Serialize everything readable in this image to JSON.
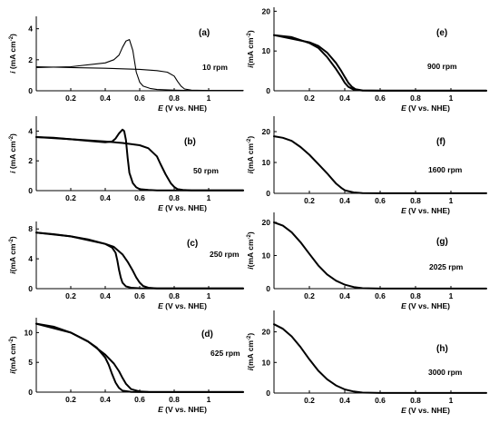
{
  "chart_data": [
    {
      "type": "line",
      "panel_label": "(a)",
      "rpm_label": "10 rpm",
      "xlabel_italic": "E",
      "xlabel_rest": " (V vs. NHE)",
      "ylabel_italic": "i",
      "ylabel_rest": " (mA cm",
      "ylabel_sup": "-2",
      "ylabel_end": ")",
      "xlim": [
        0,
        1.2
      ],
      "ylim": [
        0,
        4.8
      ],
      "xticks": [
        0.2,
        0.4,
        0.6,
        0.8,
        1
      ],
      "xtick_labels": [
        "0.2",
        "0.4",
        "0.6",
        "0.8",
        "1"
      ],
      "yticks": [
        0,
        2,
        4
      ],
      "ytick_labels": [
        "0",
        "2",
        "4"
      ],
      "series": [
        {
          "style": "thin",
          "x": [
            0,
            0.2,
            0.4,
            0.45,
            0.48,
            0.5,
            0.52,
            0.54,
            0.56,
            0.58,
            0.6,
            0.62,
            0.66,
            0.7,
            0.8,
            0.9,
            1.2
          ],
          "y": [
            1.5,
            1.55,
            1.8,
            2.0,
            2.3,
            2.8,
            3.2,
            3.3,
            2.6,
            1.2,
            0.55,
            0.3,
            0.15,
            0.08,
            0.04,
            0.02,
            0.02
          ]
        },
        {
          "style": "thin",
          "x": [
            0,
            0.2,
            0.4,
            0.6,
            0.7,
            0.76,
            0.8,
            0.82,
            0.84,
            0.86,
            0.9,
            1.0,
            1.2
          ],
          "y": [
            1.55,
            1.5,
            1.45,
            1.38,
            1.3,
            1.2,
            0.95,
            0.6,
            0.3,
            0.12,
            0.04,
            0.02,
            0.02
          ]
        }
      ]
    },
    {
      "type": "line",
      "panel_label": "(b)",
      "rpm_label": "50 rpm",
      "xlabel_italic": "E",
      "xlabel_rest": " (V vs. NHE)",
      "ylabel_italic": "i",
      "ylabel_rest": " (mA cm",
      "ylabel_sup": "-2",
      "ylabel_end": ")",
      "xlim": [
        0,
        1.2
      ],
      "ylim": [
        0,
        5
      ],
      "xticks": [
        0.2,
        0.4,
        0.6,
        0.8,
        1
      ],
      "xtick_labels": [
        "0.2",
        "0.4",
        "0.6",
        "0.8",
        "1"
      ],
      "yticks": [
        0,
        2,
        4
      ],
      "ytick_labels": [
        "0",
        "2",
        "4"
      ],
      "series": [
        {
          "style": "thick",
          "x": [
            0,
            0.1,
            0.2,
            0.3,
            0.4,
            0.44,
            0.46,
            0.48,
            0.5,
            0.51,
            0.52,
            0.53,
            0.54,
            0.56,
            0.58,
            0.6,
            0.65,
            0.7,
            1.2
          ],
          "y": [
            3.6,
            3.55,
            3.45,
            3.35,
            3.25,
            3.3,
            3.5,
            3.85,
            4.1,
            4.0,
            3.4,
            2.2,
            1.2,
            0.5,
            0.22,
            0.1,
            0.04,
            0.02,
            0.02
          ]
        },
        {
          "style": "thick",
          "x": [
            0,
            0.2,
            0.4,
            0.5,
            0.6,
            0.65,
            0.7,
            0.72,
            0.75,
            0.78,
            0.8,
            0.82,
            0.85,
            0.9,
            1.2
          ],
          "y": [
            3.6,
            3.45,
            3.3,
            3.2,
            3.05,
            2.85,
            2.3,
            1.8,
            1.1,
            0.5,
            0.25,
            0.1,
            0.04,
            0.02,
            0.02
          ]
        }
      ]
    },
    {
      "type": "line",
      "panel_label": "(c)",
      "rpm_label": "250 rpm",
      "xlabel_italic": "E",
      "xlabel_rest": " (V vs. NHE)",
      "ylabel_italic": "i",
      "ylabel_rest": "(mA cm",
      "ylabel_sup": "-2",
      "ylabel_end": ")",
      "xlim": [
        0,
        1.2
      ],
      "ylim": [
        0,
        9
      ],
      "xticks": [
        0.2,
        0.4,
        0.6,
        0.8,
        1
      ],
      "xtick_labels": [
        "0.2",
        "0.4",
        "0.6",
        "0.8",
        "1"
      ],
      "yticks": [
        0,
        4,
        8
      ],
      "ytick_labels": [
        "0",
        "4",
        "8"
      ],
      "series": [
        {
          "style": "thick",
          "x": [
            0,
            0.1,
            0.2,
            0.3,
            0.4,
            0.44,
            0.46,
            0.47,
            0.48,
            0.49,
            0.5,
            0.52,
            0.55,
            0.6,
            0.7,
            1.2
          ],
          "y": [
            7.5,
            7.3,
            7.0,
            6.6,
            6.0,
            5.5,
            4.8,
            3.8,
            2.5,
            1.5,
            0.8,
            0.3,
            0.12,
            0.05,
            0.02,
            0.02
          ]
        },
        {
          "style": "thick",
          "x": [
            0,
            0.2,
            0.4,
            0.45,
            0.5,
            0.53,
            0.56,
            0.58,
            0.6,
            0.62,
            0.65,
            0.7,
            0.8,
            1.2
          ],
          "y": [
            7.5,
            7.0,
            6.0,
            5.6,
            4.6,
            3.6,
            2.4,
            1.5,
            0.8,
            0.35,
            0.12,
            0.04,
            0.02,
            0.02
          ]
        }
      ]
    },
    {
      "type": "line",
      "panel_label": "(d)",
      "rpm_label": "625 rpm",
      "xlabel_italic": "E",
      "xlabel_rest": " (V vs. NHE)",
      "ylabel_italic": "i",
      "ylabel_rest": "(mA cm",
      "ylabel_sup": "-2",
      "ylabel_end": ")",
      "xlim": [
        0,
        1.2
      ],
      "ylim": [
        0,
        12.5
      ],
      "xticks": [
        0.2,
        0.4,
        0.6,
        0.8,
        1
      ],
      "xtick_labels": [
        "0.2",
        "0.4",
        "0.6",
        "0.8",
        "1"
      ],
      "yticks": [
        0,
        5,
        10
      ],
      "ytick_labels": [
        "0",
        "5",
        "10"
      ],
      "series": [
        {
          "style": "thick",
          "x": [
            0,
            0.1,
            0.2,
            0.3,
            0.35,
            0.4,
            0.42,
            0.44,
            0.46,
            0.48,
            0.5,
            0.55,
            0.6,
            1.2
          ],
          "y": [
            11.5,
            11.0,
            10.0,
            8.5,
            7.5,
            5.8,
            4.6,
            3.0,
            1.6,
            0.7,
            0.25,
            0.05,
            0.02,
            0.02
          ]
        },
        {
          "style": "thick",
          "x": [
            0,
            0.2,
            0.3,
            0.4,
            0.45,
            0.48,
            0.5,
            0.52,
            0.55,
            0.6,
            0.65,
            1.2
          ],
          "y": [
            11.5,
            10.0,
            8.5,
            6.3,
            4.8,
            3.5,
            2.4,
            1.4,
            0.5,
            0.1,
            0.03,
            0.02
          ]
        }
      ]
    },
    {
      "type": "line",
      "panel_label": "(e)",
      "rpm_label": "900 rpm",
      "xlabel_italic": "E",
      "xlabel_rest": " (V vs. NHE)",
      "ylabel_italic": "i",
      "ylabel_rest": "(mA cm",
      "ylabel_sup": "-2",
      "ylabel_end": ")",
      "xlim": [
        0,
        1.2
      ],
      "ylim": [
        0,
        21
      ],
      "xticks": [
        0.2,
        0.4,
        0.6,
        0.8,
        1
      ],
      "xtick_labels": [
        "0.2",
        "0.4",
        "0.6",
        "0.8",
        "1"
      ],
      "yticks": [
        0,
        10,
        20
      ],
      "ytick_labels": [
        "0",
        "10",
        "20"
      ],
      "series": [
        {
          "style": "thick",
          "x": [
            0,
            0.1,
            0.2,
            0.25,
            0.3,
            0.35,
            0.38,
            0.4,
            0.42,
            0.45,
            0.5,
            0.6,
            1.2
          ],
          "y": [
            14.0,
            13.5,
            12.0,
            10.8,
            8.5,
            5.5,
            3.5,
            2.0,
            1.0,
            0.3,
            0.05,
            0.02,
            0.02
          ]
        },
        {
          "style": "thick",
          "x": [
            0,
            0.2,
            0.25,
            0.3,
            0.35,
            0.38,
            0.4,
            0.42,
            0.44,
            0.46,
            0.5,
            0.6,
            1.2
          ],
          "y": [
            14.0,
            12.2,
            11.3,
            9.6,
            7.0,
            5.0,
            3.5,
            2.0,
            1.0,
            0.4,
            0.1,
            0.02,
            0.02
          ]
        }
      ]
    },
    {
      "type": "line",
      "panel_label": "(f)",
      "rpm_label": "1600 rpm",
      "xlabel_italic": "E",
      "xlabel_rest": " (V vs. NHE)",
      "ylabel_italic": "i",
      "ylabel_rest": "(mA cm",
      "ylabel_sup": "-2",
      "ylabel_end": ")",
      "xlim": [
        0,
        1.2
      ],
      "ylim": [
        0,
        25
      ],
      "xticks": [
        0.2,
        0.4,
        0.6,
        0.8,
        1
      ],
      "xtick_labels": [
        "0.2",
        "0.4",
        "0.6",
        "0.8",
        "1"
      ],
      "yticks": [
        0,
        10,
        20
      ],
      "ytick_labels": [
        "0",
        "10",
        "20"
      ],
      "series": [
        {
          "style": "thick",
          "x": [
            0,
            0.05,
            0.1,
            0.15,
            0.2,
            0.25,
            0.3,
            0.33,
            0.35,
            0.38,
            0.4,
            0.45,
            0.5,
            0.6,
            1.2
          ],
          "y": [
            18.5,
            18.0,
            17.0,
            15.0,
            12.5,
            9.5,
            6.5,
            4.5,
            3.2,
            1.8,
            1.0,
            0.3,
            0.08,
            0.02,
            0.02
          ]
        }
      ]
    },
    {
      "type": "line",
      "panel_label": "(g)",
      "rpm_label": "2025 rpm",
      "xlabel_italic": "E",
      "xlabel_rest": " (V vs. NHE)",
      "ylabel_italic": "i",
      "ylabel_rest": "(mA cm",
      "ylabel_sup": "-2",
      "ylabel_end": ")",
      "xlim": [
        0,
        1.2
      ],
      "ylim": [
        0,
        23
      ],
      "xticks": [
        0.2,
        0.4,
        0.6,
        0.8,
        1
      ],
      "xtick_labels": [
        "0.2",
        "0.4",
        "0.6",
        "0.8",
        "1"
      ],
      "yticks": [
        0,
        10,
        20
      ],
      "ytick_labels": [
        "0",
        "10",
        "20"
      ],
      "series": [
        {
          "style": "thick",
          "x": [
            0,
            0.05,
            0.1,
            0.15,
            0.2,
            0.25,
            0.3,
            0.35,
            0.4,
            0.45,
            0.5,
            0.6,
            1.2
          ],
          "y": [
            20.0,
            19.0,
            17.0,
            14.0,
            10.5,
            7.0,
            4.3,
            2.4,
            1.2,
            0.5,
            0.15,
            0.03,
            0.02
          ]
        }
      ]
    },
    {
      "type": "line",
      "panel_label": "(h)",
      "rpm_label": "3000 rpm",
      "xlabel_italic": "E",
      "xlabel_rest": " (V vs. NHE)",
      "ylabel_italic": "i",
      "ylabel_rest": "(mA cm",
      "ylabel_sup": "-2",
      "ylabel_end": ")",
      "xlim": [
        0,
        1.2
      ],
      "ylim": [
        0,
        27
      ],
      "xticks": [
        0.2,
        0.4,
        0.6,
        0.8,
        1
      ],
      "xtick_labels": [
        "0.2",
        "0.4",
        "0.6",
        "0.8",
        "1"
      ],
      "yticks": [
        0,
        10,
        20
      ],
      "ytick_labels": [
        "0",
        "10",
        "20"
      ],
      "series": [
        {
          "style": "thick",
          "x": [
            0,
            0.05,
            0.1,
            0.15,
            0.2,
            0.25,
            0.3,
            0.35,
            0.4,
            0.45,
            0.5,
            0.6,
            1.2
          ],
          "y": [
            22.5,
            21.0,
            18.5,
            15.0,
            11.0,
            7.3,
            4.5,
            2.5,
            1.2,
            0.5,
            0.15,
            0.03,
            0.02
          ]
        }
      ]
    }
  ]
}
